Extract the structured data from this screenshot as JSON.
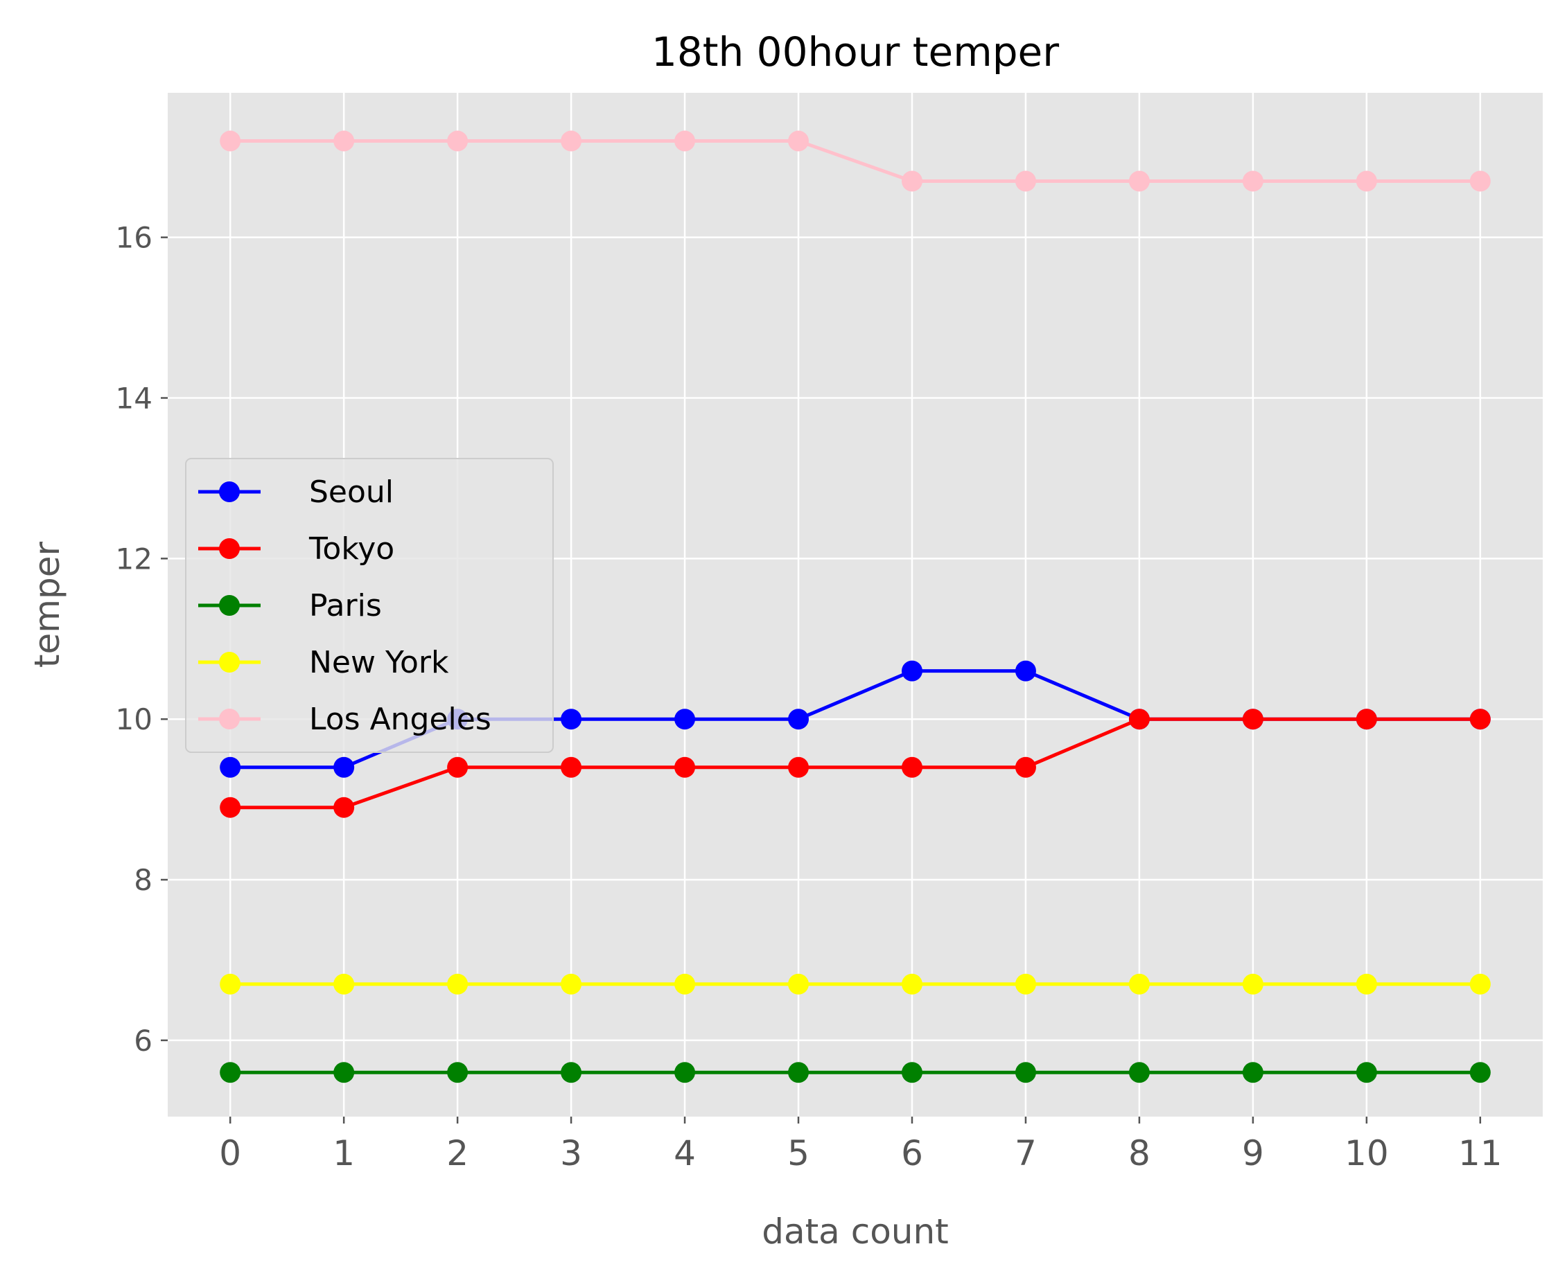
{
  "chart_data": {
    "type": "line",
    "title": "18th 00hour temper",
    "xlabel": "data count",
    "ylabel": "temper",
    "x": [
      0,
      1,
      2,
      3,
      4,
      5,
      6,
      7,
      8,
      9,
      10,
      11
    ],
    "xticks": [
      "0",
      "1",
      "2",
      "3",
      "4",
      "5",
      "6",
      "7",
      "8",
      "9",
      "10",
      "11"
    ],
    "yticks": [
      "6",
      "8",
      "10",
      "12",
      "14",
      "16"
    ],
    "ytick_values": [
      6,
      8,
      10,
      12,
      14,
      16
    ],
    "xlim": [
      -0.55,
      11.55
    ],
    "ylim": [
      5.05,
      17.8
    ],
    "grid": true,
    "legend_position": "center-left",
    "background": "#e5e5e5",
    "series": [
      {
        "name": "Seoul",
        "color": "#0000ff",
        "values": [
          9.4,
          9.4,
          10.0,
          10.0,
          10.0,
          10.0,
          10.6,
          10.6,
          10.0,
          10.0,
          10.0,
          10.0
        ]
      },
      {
        "name": "Tokyo",
        "color": "#ff0000",
        "values": [
          8.9,
          8.9,
          9.4,
          9.4,
          9.4,
          9.4,
          9.4,
          9.4,
          10.0,
          10.0,
          10.0,
          10.0
        ]
      },
      {
        "name": "Paris",
        "color": "#008000",
        "values": [
          5.6,
          5.6,
          5.6,
          5.6,
          5.6,
          5.6,
          5.6,
          5.6,
          5.6,
          5.6,
          5.6,
          5.6
        ]
      },
      {
        "name": "New York",
        "color": "#ffff00",
        "values": [
          6.7,
          6.7,
          6.7,
          6.7,
          6.7,
          6.7,
          6.7,
          6.7,
          6.7,
          6.7,
          6.7,
          6.7
        ]
      },
      {
        "name": "Los Angeles",
        "color": "#ffc0cb",
        "values": [
          17.2,
          17.2,
          17.2,
          17.2,
          17.2,
          17.2,
          16.7,
          16.7,
          16.7,
          16.7,
          16.7,
          16.7
        ]
      }
    ]
  }
}
